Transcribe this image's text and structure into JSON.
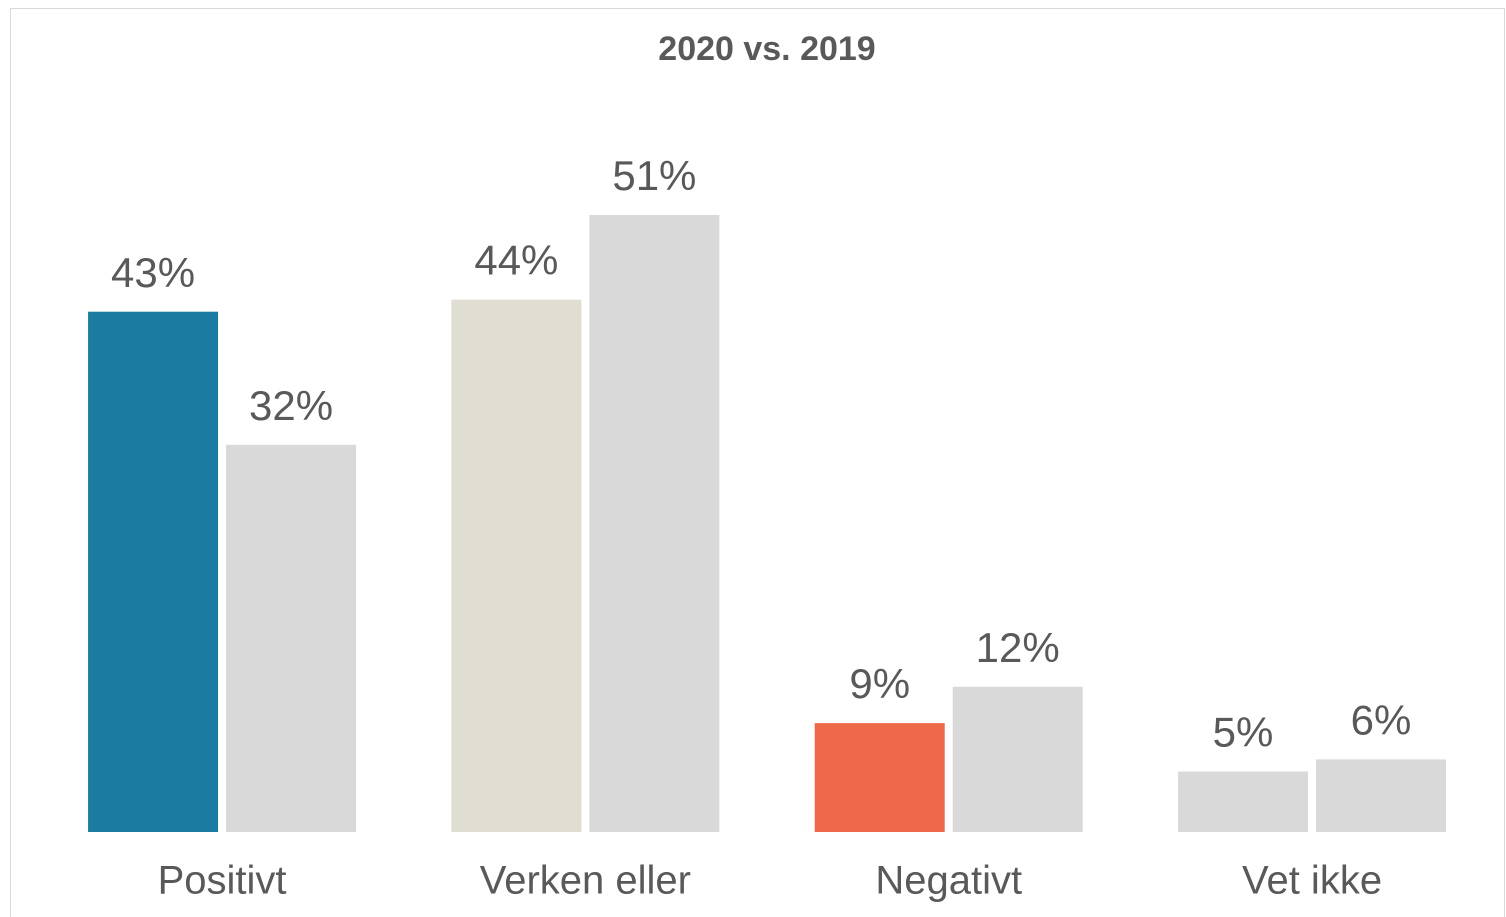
{
  "chart_data": {
    "type": "bar",
    "title": "2020 vs. 2019",
    "categories": [
      "Positivt",
      "Verken eller",
      "Negativt",
      "Vet ikke"
    ],
    "series": [
      {
        "colors": [
          "#1b7ba0",
          "#e0ddd2",
          "#f0684a",
          "#d9d9d9"
        ],
        "values": [
          43,
          44,
          9,
          5
        ],
        "value_labels": [
          "43%",
          "44%",
          "9%",
          "5%"
        ]
      },
      {
        "colors": [
          "#d9d9d9",
          "#d9d9d9",
          "#d9d9d9",
          "#d9d9d9"
        ],
        "values": [
          32,
          51,
          12,
          6
        ],
        "value_labels": [
          "32%",
          "51%",
          "12%",
          "6%"
        ]
      }
    ],
    "ylim": [
      0,
      60
    ]
  }
}
